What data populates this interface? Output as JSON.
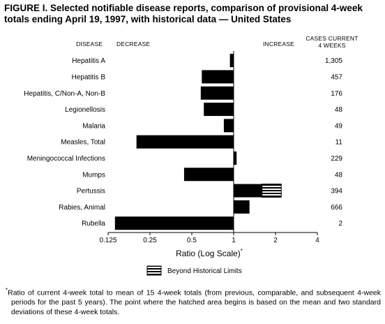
{
  "title": "FIGURE I. Selected notifiable disease reports, comparison of provisional 4-week totals ending April 19, 1997, with historical data — United States",
  "headers": {
    "disease": "DISEASE",
    "decrease": "DECREASE",
    "increase": "INCREASE",
    "cases_line1": "CASES CURRENT",
    "cases_line2": "4 WEEKS"
  },
  "legend": {
    "label": "Beyond Historical Limits"
  },
  "footnote": {
    "marker": "*",
    "text": "Ratio of current 4-week total to mean of 15 4-week totals (from previous, comparable, and subsequent 4-week periods for the past 5 years). The point where the hatched area begins is based on the mean and two standard deviations of these 4-week totals."
  },
  "colors": {
    "bar": "#000000",
    "background": "#ffffff"
  },
  "chart_data": {
    "type": "bar",
    "orientation": "horizontal",
    "xscale": "log2",
    "xlabel": "Ratio (Log Scale)",
    "xlabel_marker": "*",
    "xlim": [
      0.125,
      4
    ],
    "xticks": [
      0.125,
      0.25,
      0.5,
      1,
      2,
      4
    ],
    "xtick_labels": [
      "0.125",
      "0.25",
      "0.5",
      "1",
      "2",
      "4"
    ],
    "baseline": 1,
    "grid": false,
    "legend_position": "bottom",
    "categories": [
      "Hepatitis A",
      "Hepatitis B",
      "Hepatitis, C/Non-A, Non-B",
      "Legionellosis",
      "Malaria",
      "Measles, Total",
      "Meningococcal Infections",
      "Mumps",
      "Pertussis",
      "Rabies, Animal",
      "Rubella"
    ],
    "values": [
      0.94,
      0.59,
      0.58,
      0.61,
      0.85,
      0.2,
      1.05,
      0.44,
      2.2,
      1.3,
      0.14
    ],
    "beyond_limits_start": [
      null,
      null,
      null,
      null,
      null,
      null,
      null,
      null,
      1.6,
      null,
      null
    ],
    "cases_current_4_weeks": [
      "1,305",
      "457",
      "176",
      "48",
      "49",
      "11",
      "229",
      "48",
      "394",
      "666",
      "2"
    ]
  }
}
